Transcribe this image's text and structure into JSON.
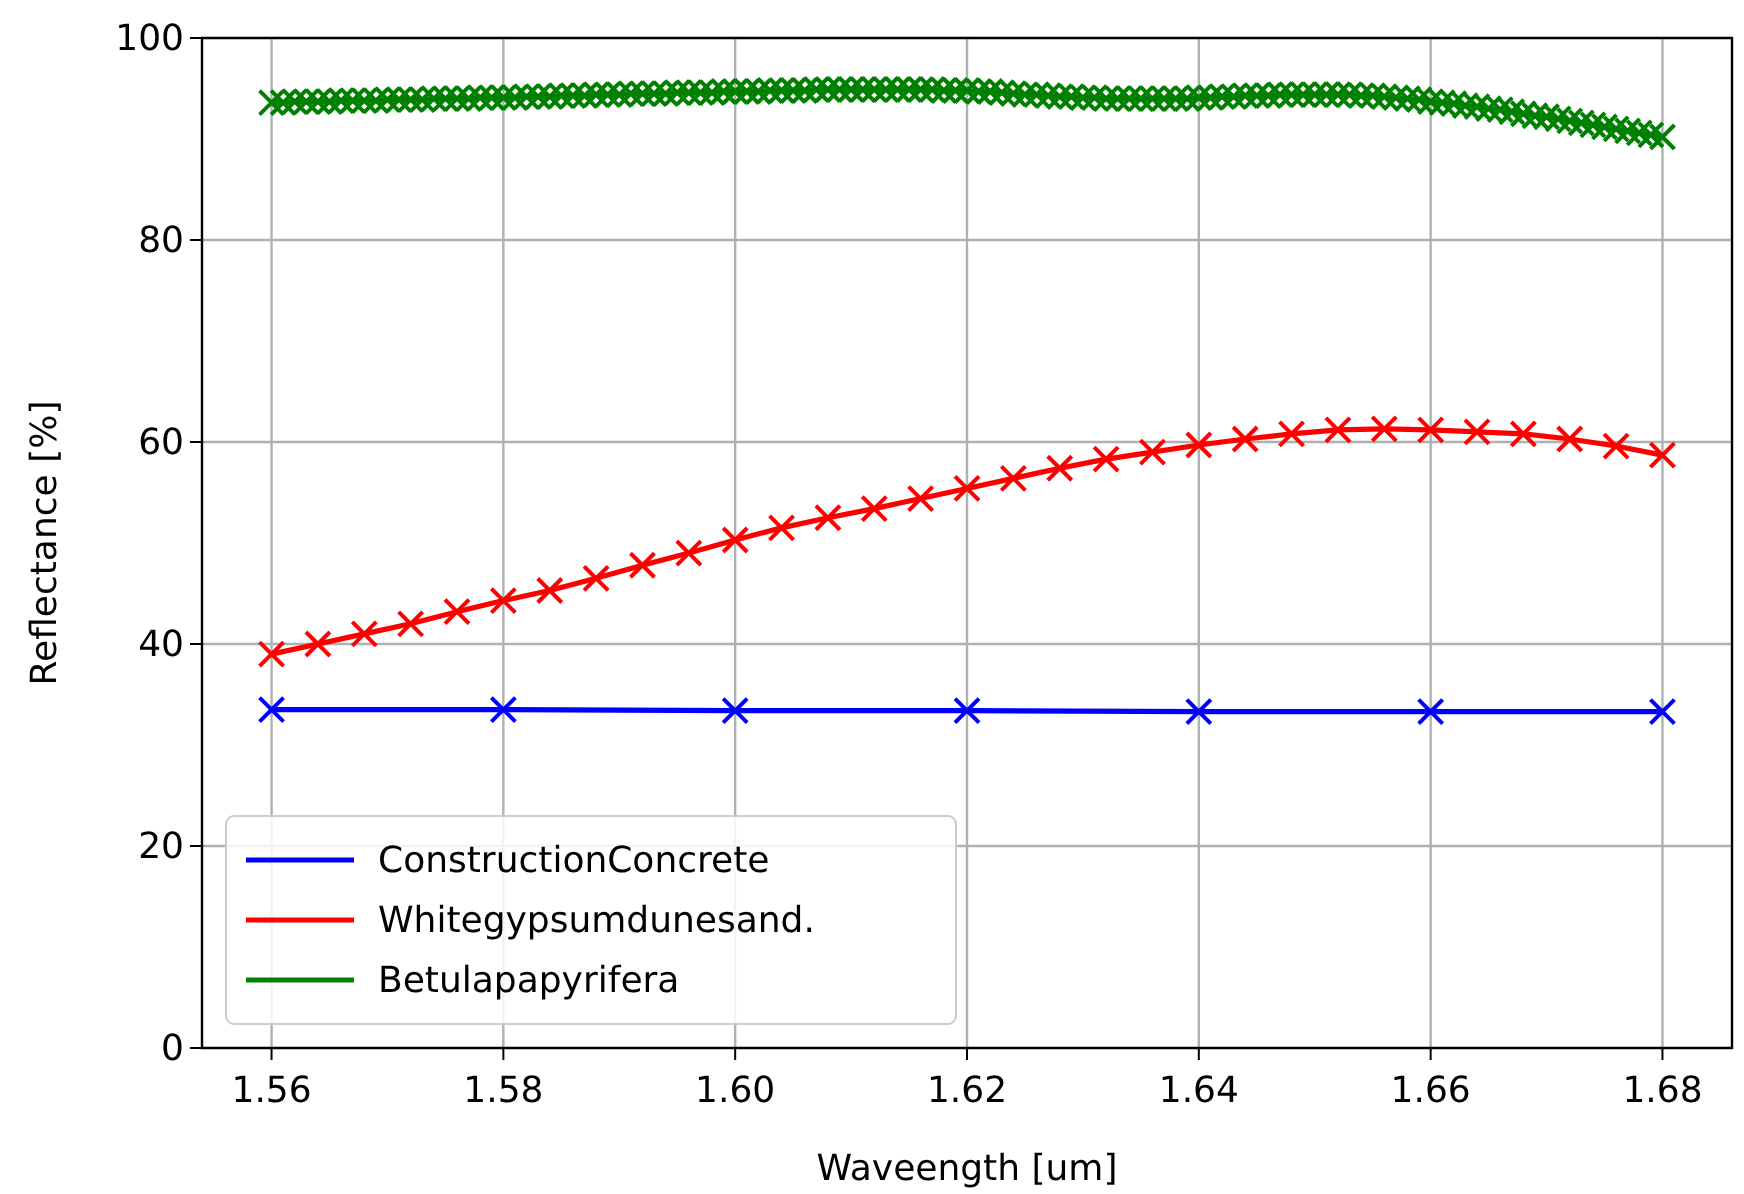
{
  "chart_data": {
    "type": "line",
    "xlabel": "Waveength [um]",
    "ylabel": "Reflectance [%]",
    "xlim": [
      1.554,
      1.686
    ],
    "ylim": [
      0,
      100
    ],
    "xticks": [
      {
        "value": 1.56,
        "label": "1.56"
      },
      {
        "value": 1.58,
        "label": "1.58"
      },
      {
        "value": 1.6,
        "label": "1.60"
      },
      {
        "value": 1.62,
        "label": "1.62"
      },
      {
        "value": 1.64,
        "label": "1.64"
      },
      {
        "value": 1.66,
        "label": "1.66"
      },
      {
        "value": 1.68,
        "label": "1.68"
      }
    ],
    "yticks": [
      0,
      20,
      40,
      60,
      80,
      100
    ],
    "grid": true,
    "legend": "bottom left",
    "marker": "cross",
    "line_style": "solid",
    "series": [
      {
        "name": "ConstructionConcrete",
        "color": "#0000ff",
        "x": [
          1.56,
          1.58,
          1.6,
          1.62,
          1.64,
          1.66,
          1.68
        ],
        "values": [
          33.5,
          33.5,
          33.4,
          33.4,
          33.3,
          33.3,
          33.3
        ]
      },
      {
        "name": "Whitegypsumdunesand.",
        "color": "#ff0000",
        "x": [
          1.56,
          1.564,
          1.568,
          1.572,
          1.576,
          1.58,
          1.584,
          1.588,
          1.592,
          1.596,
          1.6,
          1.604,
          1.608,
          1.612,
          1.616,
          1.62,
          1.624,
          1.628,
          1.632,
          1.636,
          1.64,
          1.644,
          1.648,
          1.652,
          1.656,
          1.66,
          1.664,
          1.668,
          1.672,
          1.676,
          1.68
        ],
        "values": [
          39.0,
          40.0,
          41.0,
          42.0,
          43.2,
          44.3,
          45.3,
          46.5,
          47.8,
          49.0,
          50.3,
          51.5,
          52.5,
          53.4,
          54.4,
          55.4,
          56.4,
          57.4,
          58.3,
          59.0,
          59.7,
          60.3,
          60.8,
          61.2,
          61.3,
          61.2,
          61.0,
          60.8,
          60.3,
          59.6,
          58.7
        ]
      },
      {
        "name": "Betulapapyrifera",
        "color": "#008000",
        "x": [
          1.56,
          1.561,
          1.562,
          1.563,
          1.564,
          1.565,
          1.566,
          1.567,
          1.568,
          1.569,
          1.57,
          1.571,
          1.572,
          1.573,
          1.574,
          1.575,
          1.576,
          1.577,
          1.578,
          1.579,
          1.58,
          1.581,
          1.582,
          1.583,
          1.584,
          1.585,
          1.586,
          1.587,
          1.588,
          1.589,
          1.59,
          1.591,
          1.592,
          1.593,
          1.594,
          1.595,
          1.596,
          1.597,
          1.598,
          1.599,
          1.6,
          1.601,
          1.602,
          1.603,
          1.604,
          1.605,
          1.606,
          1.607,
          1.608,
          1.609,
          1.61,
          1.611,
          1.612,
          1.613,
          1.614,
          1.615,
          1.616,
          1.617,
          1.618,
          1.619,
          1.62,
          1.621,
          1.622,
          1.623,
          1.624,
          1.625,
          1.626,
          1.627,
          1.628,
          1.629,
          1.63,
          1.631,
          1.632,
          1.633,
          1.634,
          1.635,
          1.636,
          1.637,
          1.638,
          1.639,
          1.64,
          1.641,
          1.642,
          1.643,
          1.644,
          1.645,
          1.646,
          1.647,
          1.648,
          1.649,
          1.65,
          1.651,
          1.652,
          1.653,
          1.654,
          1.655,
          1.656,
          1.657,
          1.658,
          1.659,
          1.66,
          1.661,
          1.662,
          1.663,
          1.664,
          1.665,
          1.666,
          1.667,
          1.668,
          1.669,
          1.67,
          1.671,
          1.672,
          1.673,
          1.674,
          1.675,
          1.676,
          1.677,
          1.678,
          1.679,
          1.68
        ],
        "values": [
          93.6,
          93.6,
          93.7,
          93.7,
          93.7,
          93.7,
          93.8,
          93.8,
          93.8,
          93.8,
          93.9,
          93.9,
          93.9,
          93.9,
          94.0,
          94.0,
          94.0,
          94.0,
          94.1,
          94.1,
          94.1,
          94.1,
          94.2,
          94.2,
          94.2,
          94.3,
          94.3,
          94.3,
          94.4,
          94.4,
          94.4,
          94.5,
          94.5,
          94.5,
          94.5,
          94.6,
          94.6,
          94.6,
          94.6,
          94.7,
          94.7,
          94.7,
          94.7,
          94.8,
          94.8,
          94.8,
          94.8,
          94.9,
          94.9,
          94.9,
          94.9,
          94.9,
          94.9,
          94.9,
          94.9,
          94.9,
          94.9,
          94.9,
          94.8,
          94.8,
          94.8,
          94.7,
          94.7,
          94.6,
          94.5,
          94.4,
          94.4,
          94.3,
          94.2,
          94.2,
          94.1,
          94.1,
          94.0,
          94.0,
          94.0,
          94.0,
          94.0,
          94.0,
          94.0,
          94.0,
          94.1,
          94.1,
          94.2,
          94.2,
          94.3,
          94.3,
          94.3,
          94.4,
          94.4,
          94.4,
          94.4,
          94.4,
          94.4,
          94.4,
          94.3,
          94.3,
          94.2,
          94.1,
          94.0,
          93.9,
          93.7,
          93.6,
          93.5,
          93.3,
          93.2,
          93.0,
          92.9,
          92.7,
          92.5,
          92.3,
          92.2,
          92.0,
          91.8,
          91.6,
          91.4,
          91.2,
          91.0,
          90.8,
          90.6,
          90.4,
          90.2
        ]
      }
    ]
  }
}
